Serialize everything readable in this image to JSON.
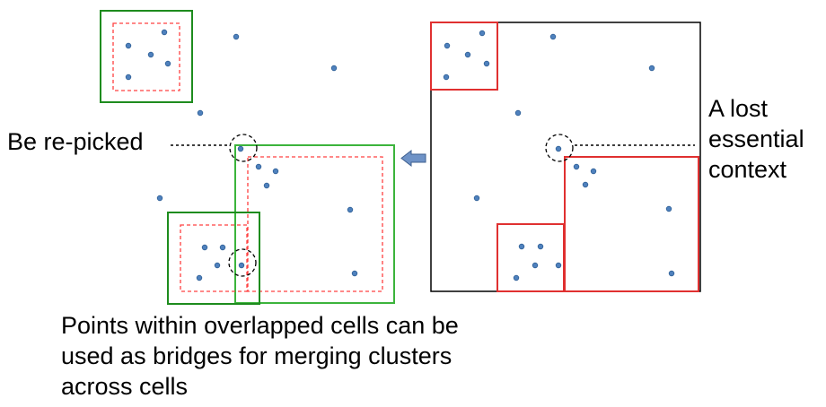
{
  "labels": {
    "repicked": "Be re-picked",
    "lost_line1": "A lost",
    "lost_line2": "essential",
    "lost_line3": "context",
    "caption_line1": "Points within overlapped cells can be",
    "caption_line2": "used as bridges for merging clusters",
    "caption_line3": "across cells"
  },
  "colors": {
    "point": "#4f81bd",
    "point_stroke": "#2e5f96",
    "expanded_cell": "#1e8c1e",
    "inner_cell": "#ff4040",
    "grid_cell": "#e03030",
    "region": "#000000",
    "arrow": "#6f93c7"
  },
  "icons": {
    "arrow": "left-arrow-icon",
    "highlight": "dashed-circle-icon"
  }
}
